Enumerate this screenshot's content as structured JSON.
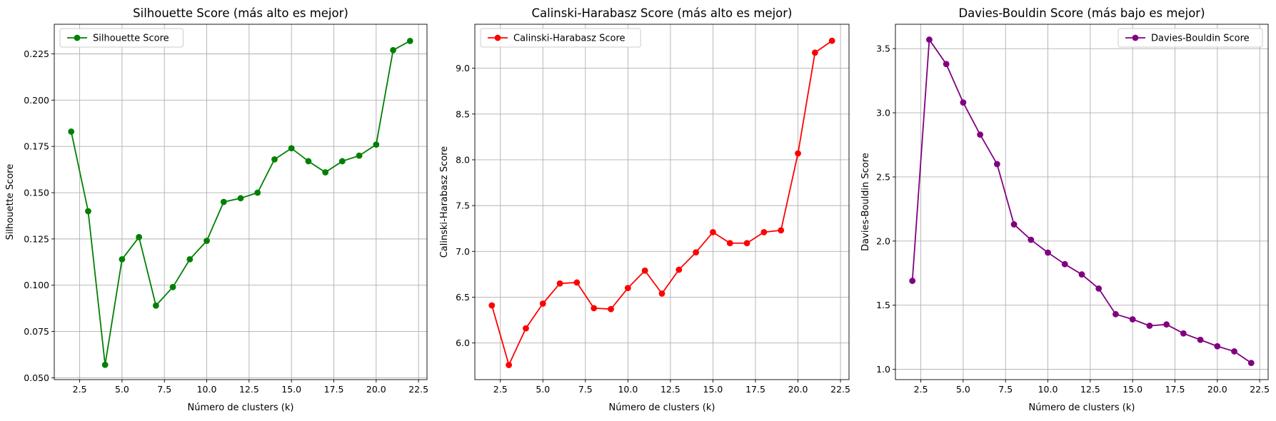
{
  "chart_data": [
    {
      "type": "line",
      "title": "Silhouette Score (más alto es mejor)",
      "xlabel": "Número de clusters (k)",
      "ylabel": "Silhouette Score",
      "xlim": [
        1.0,
        23.0
      ],
      "ylim": [
        0.049,
        0.241
      ],
      "xticks": [
        2.5,
        5.0,
        7.5,
        10.0,
        12.5,
        15.0,
        17.5,
        20.0,
        22.5
      ],
      "xtick_labels": [
        "2.5",
        "5.0",
        "7.5",
        "10.0",
        "12.5",
        "15.0",
        "17.5",
        "20.0",
        "22.5"
      ],
      "yticks": [
        0.05,
        0.075,
        0.1,
        0.125,
        0.15,
        0.175,
        0.2,
        0.225
      ],
      "ytick_labels": [
        "0.050",
        "0.075",
        "0.100",
        "0.125",
        "0.150",
        "0.175",
        "0.200",
        "0.225"
      ],
      "grid": true,
      "legend_position": "upper left",
      "series": [
        {
          "name": "Silhouette Score",
          "color": "#008000",
          "x": [
            2,
            3,
            4,
            5,
            6,
            7,
            8,
            9,
            10,
            11,
            12,
            13,
            14,
            15,
            16,
            17,
            18,
            19,
            20,
            21,
            22
          ],
          "y": [
            0.183,
            0.14,
            0.057,
            0.114,
            0.126,
            0.089,
            0.099,
            0.114,
            0.124,
            0.145,
            0.147,
            0.15,
            0.168,
            0.174,
            0.167,
            0.161,
            0.167,
            0.17,
            0.176,
            0.227,
            0.232
          ]
        }
      ]
    },
    {
      "type": "line",
      "title": "Calinski-Harabasz Score (más alto es mejor)",
      "xlabel": "Número de clusters (k)",
      "ylabel": "Calinski-Harabasz Score",
      "xlim": [
        1.0,
        23.0
      ],
      "ylim": [
        5.6,
        9.48
      ],
      "xticks": [
        2.5,
        5.0,
        7.5,
        10.0,
        12.5,
        15.0,
        17.5,
        20.0,
        22.5
      ],
      "xtick_labels": [
        "2.5",
        "5.0",
        "7.5",
        "10.0",
        "12.5",
        "15.0",
        "17.5",
        "20.0",
        "22.5"
      ],
      "yticks": [
        6.0,
        6.5,
        7.0,
        7.5,
        8.0,
        8.5,
        9.0
      ],
      "ytick_labels": [
        "6.0",
        "6.5",
        "7.0",
        "7.5",
        "8.0",
        "8.5",
        "9.0"
      ],
      "grid": true,
      "legend_position": "upper left",
      "series": [
        {
          "name": "Calinski-Harabasz Score",
          "color": "#ff0000",
          "x": [
            2,
            3,
            4,
            5,
            6,
            7,
            8,
            9,
            10,
            11,
            12,
            13,
            14,
            15,
            16,
            17,
            18,
            19,
            20,
            21,
            22
          ],
          "y": [
            6.41,
            5.76,
            6.16,
            6.43,
            6.65,
            6.66,
            6.38,
            6.37,
            6.6,
            6.79,
            6.54,
            6.8,
            6.99,
            7.21,
            7.09,
            7.09,
            7.21,
            7.23,
            8.07,
            9.17,
            9.3
          ]
        }
      ]
    },
    {
      "type": "line",
      "title": "Davies-Bouldin Score (más bajo es mejor)",
      "xlabel": "Número de clusters (k)",
      "ylabel": "Davies-Bouldin Score",
      "xlim": [
        1.0,
        23.0
      ],
      "ylim": [
        0.92,
        3.69
      ],
      "xticks": [
        2.5,
        5.0,
        7.5,
        10.0,
        12.5,
        15.0,
        17.5,
        20.0,
        22.5
      ],
      "xtick_labels": [
        "2.5",
        "5.0",
        "7.5",
        "10.0",
        "12.5",
        "15.0",
        "17.5",
        "20.0",
        "22.5"
      ],
      "yticks": [
        1.0,
        1.5,
        2.0,
        2.5,
        3.0,
        3.5
      ],
      "ytick_labels": [
        "1.0",
        "1.5",
        "2.0",
        "2.5",
        "3.0",
        "3.5"
      ],
      "grid": true,
      "legend_position": "upper right",
      "series": [
        {
          "name": "Davies-Bouldin Score",
          "color": "#800080",
          "x": [
            2,
            3,
            4,
            5,
            6,
            7,
            8,
            9,
            10,
            11,
            12,
            13,
            14,
            15,
            16,
            17,
            18,
            19,
            20,
            21,
            22
          ],
          "y": [
            1.69,
            3.57,
            3.38,
            3.08,
            2.83,
            2.6,
            2.13,
            2.01,
            1.91,
            1.82,
            1.74,
            1.63,
            1.43,
            1.39,
            1.34,
            1.35,
            1.28,
            1.23,
            1.18,
            1.14,
            1.05
          ]
        }
      ]
    }
  ]
}
